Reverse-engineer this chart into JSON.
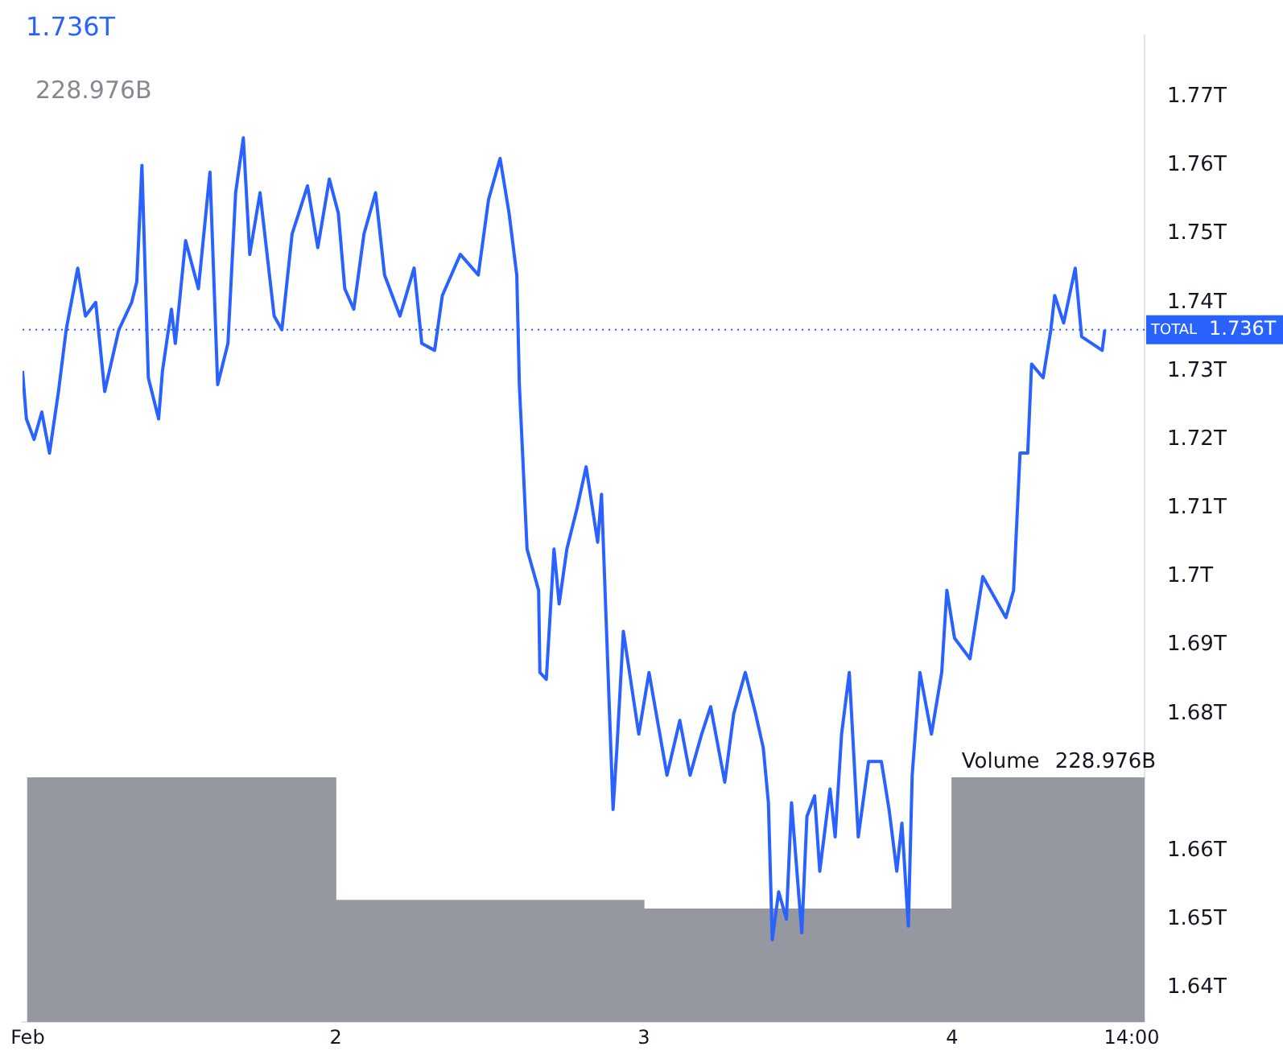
{
  "chart_data": {
    "type": "line",
    "xlim": [
      "--01-31T23:36",
      "--02-04T15:00"
    ],
    "xticks": [
      {
        "value": "--02-01",
        "label": "Feb"
      },
      {
        "value": "--02-02",
        "label": "2"
      },
      {
        "value": "--02-03",
        "label": "3"
      },
      {
        "value": "--02-04",
        "label": "4"
      },
      {
        "value": "--02-04T14:00",
        "label": "14:00"
      }
    ],
    "ylim": [
      1.635,
      1.779
    ],
    "yticks": [
      {
        "value": 1.64,
        "label": "1.64T"
      },
      {
        "value": 1.65,
        "label": "1.65T"
      },
      {
        "value": 1.66,
        "label": "1.66T"
      },
      {
        "value": 1.68,
        "label": "1.68T"
      },
      {
        "value": 1.69,
        "label": "1.69T"
      },
      {
        "value": 1.7,
        "label": "1.7T"
      },
      {
        "value": 1.71,
        "label": "1.71T"
      },
      {
        "value": 1.72,
        "label": "1.72T"
      },
      {
        "value": 1.73,
        "label": "1.73T"
      },
      {
        "value": 1.74,
        "label": "1.74T"
      },
      {
        "value": 1.75,
        "label": "1.75T"
      },
      {
        "value": 1.76,
        "label": "1.76T"
      },
      {
        "value": 1.77,
        "label": "1.77T"
      }
    ],
    "y2lim": [
      0,
      926
    ],
    "series": [
      {
        "type": "bar",
        "name": "Volume",
        "color": "#9598a1",
        "axis": "y2",
        "x": [
          "--02-01T12:00",
          "--02-02T12:00",
          "--02-03T12:00",
          "--02-04T12:00"
        ],
        "values": [
          229,
          114,
          106,
          228.976
        ],
        "value_labels": [
          null,
          null,
          null,
          "228.976B"
        ]
      },
      {
        "color": "#2962ff",
        "x": [
          "--01-31T23:36",
          "--01-31T23:54",
          "--02-01T00:30",
          "--02-01T01:06",
          "--02-01T01:42",
          "--02-01T02:24",
          "--02-01T03:00",
          "--02-01T03:54",
          "--02-01T04:30",
          "--02-01T05:18",
          "--02-01T06:00",
          "--02-01T07:06",
          "--02-01T08:06",
          "--02-01T08:30",
          "--02-01T08:54",
          "--02-01T09:24",
          "--02-01T10:12",
          "--02-01T10:30",
          "--02-01T11:12",
          "--02-01T11:30",
          "--02-01T12:18",
          "--02-01T13:18",
          "--02-01T14:12",
          "--02-01T14:48",
          "--02-01T15:36",
          "--02-01T16:12",
          "--02-01T16:48",
          "--02-01T17:18",
          "--02-01T18:06",
          "--02-01T19:12",
          "--02-01T19:48",
          "--02-01T20:36",
          "--02-01T21:48",
          "--02-01T22:36",
          "--02-01T23:30",
          "--02-02T00:12",
          "--02-02T00:42",
          "--02-02T01:24",
          "--02-02T02:12",
          "--02-02T03:06",
          "--02-02T03:48",
          "--02-02T05:00",
          "--02-02T06:06",
          "--02-02T06:42",
          "--02-02T07:42",
          "--02-02T08:18",
          "--02-02T09:42",
          "--02-02T11:06",
          "--02-02T11:54",
          "--02-02T12:48",
          "--02-02T13:30",
          "--02-02T14:06",
          "--02-02T14:18",
          "--02-02T14:42",
          "--02-02T14:54",
          "--02-02T15:48",
          "--02-02T15:54",
          "--02-02T16:24",
          "--02-02T17:00",
          "--02-02T17:24",
          "--02-02T18:00",
          "--02-02T18:48",
          "--02-02T19:30",
          "--02-02T20:24",
          "--02-02T20:42",
          "--02-02T21:36",
          "--02-02T21:54",
          "--02-02T22:24",
          "--02-02T23:36",
          "--02-03T00:24",
          "--02-03T01:48",
          "--02-03T02:48",
          "--02-03T03:36",
          "--02-03T04:30",
          "--02-03T05:12",
          "--02-03T06:18",
          "--02-03T07:00",
          "--02-03T07:54",
          "--02-03T08:42",
          "--02-03T09:18",
          "--02-03T09:42",
          "--02-03T10:00",
          "--02-03T10:30",
          "--02-03T11:06",
          "--02-03T11:30",
          "--02-03T12:18",
          "--02-03T12:42",
          "--02-03T13:18",
          "--02-03T13:42",
          "--02-03T14:30",
          "--02-03T14:54",
          "--02-03T15:24",
          "--02-03T16:00",
          "--02-03T16:42",
          "--02-03T17:30",
          "--02-03T18:30",
          "--02-03T19:06",
          "--02-03T19:42",
          "--02-03T20:06",
          "--02-03T20:36",
          "--02-03T20:54",
          "--02-03T21:30",
          "--02-03T22:24",
          "--02-03T23:12",
          "--02-03T23:36",
          "--02-04T00:12",
          "--02-04T01:24",
          "--02-04T02:24",
          "--02-04T04:12",
          "--02-04T04:48",
          "--02-04T05:18",
          "--02-04T05:54",
          "--02-04T06:12",
          "--02-04T07:06",
          "--02-04T07:42",
          "--02-04T08:00",
          "--02-04T08:42",
          "--02-04T09:36",
          "--02-04T10:06",
          "--02-04T11:42",
          "--02-04T11:54"
        ],
        "values": [
          1.73,
          1.723,
          1.72,
          1.724,
          1.718,
          1.727,
          1.736,
          1.745,
          1.738,
          1.74,
          1.727,
          1.736,
          1.74,
          1.743,
          1.76,
          1.729,
          1.723,
          1.73,
          1.739,
          1.734,
          1.749,
          1.742,
          1.759,
          1.728,
          1.734,
          1.756,
          1.764,
          1.747,
          1.756,
          1.738,
          1.736,
          1.75,
          1.757,
          1.748,
          1.758,
          1.753,
          1.742,
          1.739,
          1.75,
          1.756,
          1.744,
          1.738,
          1.745,
          1.734,
          1.733,
          1.741,
          1.747,
          1.744,
          1.755,
          1.761,
          1.753,
          1.744,
          1.728,
          1.712,
          1.704,
          1.698,
          1.686,
          1.685,
          1.704,
          1.696,
          1.704,
          1.71,
          1.716,
          1.705,
          1.712,
          1.666,
          1.675,
          1.692,
          1.677,
          1.686,
          1.671,
          1.679,
          1.671,
          1.677,
          1.681,
          1.67,
          1.68,
          1.686,
          1.68,
          1.675,
          1.667,
          1.647,
          1.654,
          1.65,
          1.667,
          1.648,
          1.665,
          1.668,
          1.657,
          1.669,
          1.662,
          1.677,
          1.686,
          1.662,
          1.673,
          1.673,
          1.666,
          1.657,
          1.664,
          1.649,
          1.671,
          1.686,
          1.677,
          1.686,
          1.698,
          1.691,
          1.688,
          1.7,
          1.694,
          1.698,
          1.718,
          1.718,
          1.731,
          1.729,
          1.736,
          1.741,
          1.737,
          1.745,
          1.735,
          1.733,
          1.736
        ]
      }
    ],
    "ref_lines": [
      {
        "axis": "y",
        "value": 1.736,
        "label": "TOTAL",
        "color": "#2962ff",
        "line_style": "dotted"
      }
    ],
    "annotations": [
      "1.736T",
      "228.976B",
      "1.736T"
    ],
    "legend": false,
    "marker": "none",
    "line_style": "solid"
  }
}
